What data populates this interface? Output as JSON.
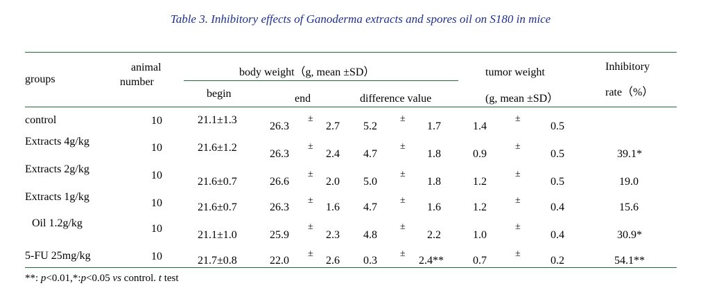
{
  "caption": "Table 3.  Inhibitory effects of Ganoderma extracts and spores oil on S180 in mice",
  "headers": {
    "groups": "groups",
    "animal_line1": "animal",
    "animal_line2": "number",
    "body_weight": "body weight（g, mean ±SD）",
    "begin": "begin",
    "end": "end",
    "difference": "difference value",
    "tumor_line1": "tumor weight",
    "tumor_line2": "(g, mean ±SD）",
    "inhibitory_line1": "Inhibitory",
    "inhibitory_line2": "rate（%）"
  },
  "rows": [
    {
      "group": "control",
      "number": "10",
      "begin": "21.1±1.3",
      "end_mean": "26.3",
      "end_pm": "±",
      "end_sd": "2.7",
      "diff_mean": "5.2",
      "diff_pm": "±",
      "diff_sd": "1.7",
      "tumor_mean": "1.4",
      "tumor_pm": "±",
      "tumor_sd": "0.5",
      "rate": ""
    },
    {
      "group": "Extracts 4g/kg",
      "number": "10",
      "begin": "21.6±1.2",
      "end_mean": "26.3",
      "end_pm": "±",
      "end_sd": "2.4",
      "diff_mean": "4.7",
      "diff_pm": "±",
      "diff_sd": "1.8",
      "tumor_mean": "0.9",
      "tumor_pm": "±",
      "tumor_sd": "0.5",
      "rate": "39.1*"
    },
    {
      "group": "Extracts 2g/kg",
      "number": "10",
      "begin": "21.6±0.7",
      "end_mean": "26.6",
      "end_pm": "±",
      "end_sd": "2.0",
      "diff_mean": "5.0",
      "diff_pm": "±",
      "diff_sd": "1.8",
      "tumor_mean": "1.2",
      "tumor_pm": "±",
      "tumor_sd": "0.5",
      "rate": "19.0"
    },
    {
      "group": "Extracts 1g/kg",
      "number": "10",
      "begin": "21.6±0.7",
      "end_mean": "26.3",
      "end_pm": "±",
      "end_sd": "1.6",
      "diff_mean": "4.7",
      "diff_pm": "±",
      "diff_sd": "1.6",
      "tumor_mean": "1.2",
      "tumor_pm": "±",
      "tumor_sd": "0.4",
      "rate": "15.6"
    },
    {
      "group": "Oil  1.2g/kg",
      "number": "10",
      "begin": "21.1±1.0",
      "end_mean": "25.9",
      "end_pm": "±",
      "end_sd": "2.3",
      "diff_mean": "4.8",
      "diff_pm": "±",
      "diff_sd": "2.2",
      "tumor_mean": "1.0",
      "tumor_pm": "±",
      "tumor_sd": "0.4",
      "rate": "30.9*"
    },
    {
      "group": "5-FU 25mg/kg",
      "number": "10",
      "begin": "21.7±0.8",
      "end_mean": "22.0",
      "end_pm": "±",
      "end_sd": "2.6",
      "diff_mean": "0.3",
      "diff_pm": "±",
      "diff_sd": "2.4**",
      "tumor_mean": "0.7",
      "tumor_pm": "±",
      "tumor_sd": "0.2",
      "rate": "54.1**"
    }
  ],
  "footnote": {
    "part1": "**: ",
    "p1": "p",
    "part2": "<0.01,*:",
    "p2": "p",
    "part3": "<0.05 ",
    "vs": "vs",
    "part4": " control. ",
    "t": "t",
    "part5": " test"
  },
  "colors": {
    "caption": "#1f2f8f",
    "rules": "#1f6b3a"
  }
}
